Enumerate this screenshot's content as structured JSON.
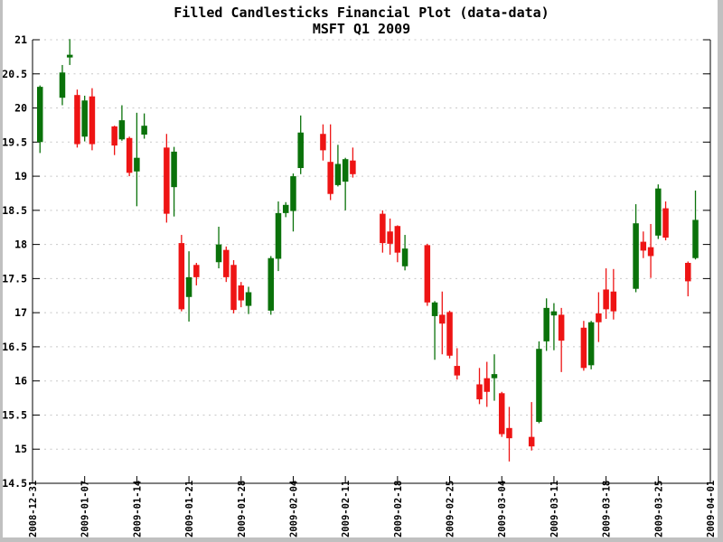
{
  "chart_data": {
    "type": "candlestick",
    "title": "Filled Candlesticks Financial Plot (data-data)",
    "subtitle": "MSFT Q1 2009",
    "ylabel": "",
    "xlabel": "",
    "ylim": [
      14.5,
      21
    ],
    "y_tick_step": 0.5,
    "y_tick_labels": [
      "21",
      "20.5",
      "20",
      "19.5",
      "19",
      "18.5",
      "18",
      "17.5",
      "17",
      "16.5",
      "16",
      "15.5",
      "15",
      "14.5"
    ],
    "grid": "horizontal-dashed",
    "legend": "none",
    "x_axis": {
      "start_date": "2008-12-31",
      "end_date": "2009-04-01",
      "span_days": 91,
      "tick_interval_days": 7,
      "tick_day_offsets": [
        0,
        7,
        14,
        21,
        28,
        35,
        42,
        49,
        56,
        63,
        70,
        77,
        84,
        91
      ],
      "tick_labels": [
        "2008-12-31",
        "2009-01-07",
        "2009-01-14",
        "2009-01-21",
        "2009-01-28",
        "2009-02-04",
        "2009-02-11",
        "2009-02-18",
        "2009-02-25",
        "2009-03-04",
        "2009-03-11",
        "2009-03-18",
        "2009-03-25",
        "2009-04-01"
      ]
    },
    "colors": {
      "up": "#0a720a",
      "down": "#ee1414",
      "grid": "#c8c8c8",
      "axis": "#000000",
      "text": "#000000"
    },
    "candles": [
      {
        "date": "2009-01-01",
        "day": 1,
        "open": 19.5,
        "high": 20.33,
        "low": 19.34,
        "close": 20.31
      },
      {
        "date": "2009-01-04",
        "day": 4,
        "open": 20.15,
        "high": 20.63,
        "low": 20.04,
        "close": 20.52
      },
      {
        "date": "2009-01-05",
        "day": 5,
        "open": 20.74,
        "high": 21.01,
        "low": 20.63,
        "close": 20.78
      },
      {
        "date": "2009-01-06",
        "day": 6,
        "open": 20.19,
        "high": 20.27,
        "low": 19.42,
        "close": 19.47
      },
      {
        "date": "2009-01-07",
        "day": 7,
        "open": 19.58,
        "high": 20.18,
        "low": 19.51,
        "close": 20.11
      },
      {
        "date": "2009-01-08",
        "day": 8,
        "open": 20.17,
        "high": 20.29,
        "low": 19.38,
        "close": 19.47
      },
      {
        "date": "2009-01-11",
        "day": 11,
        "open": 19.73,
        "high": 19.74,
        "low": 19.31,
        "close": 19.45
      },
      {
        "date": "2009-01-12",
        "day": 12,
        "open": 19.54,
        "high": 20.04,
        "low": 19.52,
        "close": 19.82
      },
      {
        "date": "2009-01-13",
        "day": 13,
        "open": 19.56,
        "high": 19.58,
        "low": 19.0,
        "close": 19.05
      },
      {
        "date": "2009-01-14",
        "day": 14,
        "open": 19.07,
        "high": 19.93,
        "low": 18.56,
        "close": 19.27
      },
      {
        "date": "2009-01-15",
        "day": 15,
        "open": 19.61,
        "high": 19.92,
        "low": 19.55,
        "close": 19.74
      },
      {
        "date": "2009-01-18",
        "day": 18,
        "open": 19.42,
        "high": 19.62,
        "low": 18.32,
        "close": 18.45
      },
      {
        "date": "2009-01-19",
        "day": 19,
        "open": 18.84,
        "high": 19.43,
        "low": 18.41,
        "close": 19.36
      },
      {
        "date": "2009-01-20",
        "day": 20,
        "open": 18.02,
        "high": 18.14,
        "low": 17.02,
        "close": 17.05
      },
      {
        "date": "2009-01-21",
        "day": 21,
        "open": 17.23,
        "high": 17.9,
        "low": 16.87,
        "close": 17.52
      },
      {
        "date": "2009-01-22",
        "day": 22,
        "open": 17.7,
        "high": 17.73,
        "low": 17.4,
        "close": 17.52
      },
      {
        "date": "2009-01-25",
        "day": 25,
        "open": 17.74,
        "high": 18.26,
        "low": 17.65,
        "close": 18.0
      },
      {
        "date": "2009-01-26",
        "day": 26,
        "open": 17.92,
        "high": 17.97,
        "low": 17.45,
        "close": 17.52
      },
      {
        "date": "2009-01-27",
        "day": 27,
        "open": 17.7,
        "high": 17.77,
        "low": 16.99,
        "close": 17.04
      },
      {
        "date": "2009-01-28",
        "day": 28,
        "open": 17.4,
        "high": 17.45,
        "low": 17.08,
        "close": 17.18
      },
      {
        "date": "2009-01-29",
        "day": 29,
        "open": 17.1,
        "high": 17.38,
        "low": 16.98,
        "close": 17.3
      },
      {
        "date": "2009-02-01",
        "day": 32,
        "open": 17.03,
        "high": 17.83,
        "low": 16.97,
        "close": 17.8
      },
      {
        "date": "2009-02-02",
        "day": 33,
        "open": 17.79,
        "high": 18.63,
        "low": 17.61,
        "close": 18.46
      },
      {
        "date": "2009-02-03",
        "day": 34,
        "open": 18.46,
        "high": 18.62,
        "low": 18.4,
        "close": 18.58
      },
      {
        "date": "2009-02-04",
        "day": 35,
        "open": 18.49,
        "high": 19.04,
        "low": 18.19,
        "close": 19.0
      },
      {
        "date": "2009-02-05",
        "day": 36,
        "open": 19.12,
        "high": 19.89,
        "low": 19.03,
        "close": 19.64
      },
      {
        "date": "2009-02-08",
        "day": 39,
        "open": 19.62,
        "high": 19.76,
        "low": 19.23,
        "close": 19.38
      },
      {
        "date": "2009-02-09",
        "day": 40,
        "open": 19.21,
        "high": 19.76,
        "low": 18.65,
        "close": 18.74
      },
      {
        "date": "2009-02-10",
        "day": 41,
        "open": 18.87,
        "high": 19.46,
        "low": 18.85,
        "close": 19.18
      },
      {
        "date": "2009-02-11",
        "day": 42,
        "open": 18.92,
        "high": 19.27,
        "low": 18.5,
        "close": 19.25
      },
      {
        "date": "2009-02-12",
        "day": 43,
        "open": 19.23,
        "high": 19.42,
        "low": 18.98,
        "close": 19.03
      },
      {
        "date": "2009-02-16",
        "day": 47,
        "open": 18.45,
        "high": 18.5,
        "low": 17.88,
        "close": 18.02
      },
      {
        "date": "2009-02-17",
        "day": 48,
        "open": 18.19,
        "high": 18.38,
        "low": 17.85,
        "close": 18.01
      },
      {
        "date": "2009-02-18",
        "day": 49,
        "open": 18.27,
        "high": 18.28,
        "low": 17.74,
        "close": 17.88
      },
      {
        "date": "2009-02-19",
        "day": 50,
        "open": 17.68,
        "high": 18.14,
        "low": 17.62,
        "close": 17.94
      },
      {
        "date": "2009-02-22",
        "day": 53,
        "open": 17.99,
        "high": 18.01,
        "low": 17.1,
        "close": 17.15
      },
      {
        "date": "2009-02-23",
        "day": 54,
        "open": 16.95,
        "high": 17.17,
        "low": 16.31,
        "close": 17.15
      },
      {
        "date": "2009-02-24",
        "day": 55,
        "open": 16.97,
        "high": 17.31,
        "low": 16.39,
        "close": 16.84
      },
      {
        "date": "2009-02-25",
        "day": 56,
        "open": 17.01,
        "high": 17.03,
        "low": 16.33,
        "close": 16.37
      },
      {
        "date": "2009-02-26",
        "day": 57,
        "open": 16.22,
        "high": 16.48,
        "low": 16.02,
        "close": 16.08
      },
      {
        "date": "2009-03-01",
        "day": 60,
        "open": 15.95,
        "high": 16.19,
        "low": 15.66,
        "close": 15.73
      },
      {
        "date": "2009-03-02",
        "day": 61,
        "open": 16.04,
        "high": 16.28,
        "low": 15.62,
        "close": 15.84
      },
      {
        "date": "2009-03-03",
        "day": 62,
        "open": 16.04,
        "high": 16.39,
        "low": 15.71,
        "close": 16.1
      },
      {
        "date": "2009-03-04",
        "day": 63,
        "open": 15.82,
        "high": 15.84,
        "low": 15.18,
        "close": 15.22
      },
      {
        "date": "2009-03-05",
        "day": 64,
        "open": 15.31,
        "high": 15.62,
        "low": 14.82,
        "close": 15.16
      },
      {
        "date": "2009-03-08",
        "day": 67,
        "open": 15.18,
        "high": 15.69,
        "low": 14.98,
        "close": 15.04
      },
      {
        "date": "2009-03-09",
        "day": 68,
        "open": 15.4,
        "high": 16.58,
        "low": 15.38,
        "close": 16.47
      },
      {
        "date": "2009-03-10",
        "day": 69,
        "open": 16.58,
        "high": 17.21,
        "low": 16.44,
        "close": 17.07
      },
      {
        "date": "2009-03-11",
        "day": 70,
        "open": 16.96,
        "high": 17.14,
        "low": 16.45,
        "close": 17.02
      },
      {
        "date": "2009-03-12",
        "day": 71,
        "open": 16.97,
        "high": 17.07,
        "low": 16.13,
        "close": 16.59
      },
      {
        "date": "2009-03-15",
        "day": 74,
        "open": 16.78,
        "high": 16.88,
        "low": 16.15,
        "close": 16.19
      },
      {
        "date": "2009-03-16",
        "day": 75,
        "open": 16.23,
        "high": 16.88,
        "low": 16.17,
        "close": 16.86
      },
      {
        "date": "2009-03-17",
        "day": 76,
        "open": 16.99,
        "high": 17.3,
        "low": 16.57,
        "close": 16.86
      },
      {
        "date": "2009-03-18",
        "day": 77,
        "open": 17.34,
        "high": 17.65,
        "low": 16.91,
        "close": 17.05
      },
      {
        "date": "2009-03-19",
        "day": 78,
        "open": 17.31,
        "high": 17.64,
        "low": 16.9,
        "close": 17.02
      },
      {
        "date": "2009-03-22",
        "day": 81,
        "open": 17.35,
        "high": 18.59,
        "low": 17.3,
        "close": 18.31
      },
      {
        "date": "2009-03-23",
        "day": 82,
        "open": 18.04,
        "high": 18.19,
        "low": 17.8,
        "close": 17.91
      },
      {
        "date": "2009-03-24",
        "day": 83,
        "open": 17.96,
        "high": 18.3,
        "low": 17.51,
        "close": 17.83
      },
      {
        "date": "2009-03-25",
        "day": 84,
        "open": 18.13,
        "high": 18.88,
        "low": 18.08,
        "close": 18.82
      },
      {
        "date": "2009-03-26",
        "day": 85,
        "open": 18.53,
        "high": 18.63,
        "low": 18.06,
        "close": 18.1
      },
      {
        "date": "2009-03-29",
        "day": 88,
        "open": 17.73,
        "high": 17.75,
        "low": 17.24,
        "close": 17.46
      },
      {
        "date": "2009-03-30",
        "day": 89,
        "open": 17.8,
        "high": 18.79,
        "low": 17.78,
        "close": 18.36
      }
    ]
  },
  "window": {
    "frame_color": "#c0c0c0",
    "background": "#ffffff"
  }
}
